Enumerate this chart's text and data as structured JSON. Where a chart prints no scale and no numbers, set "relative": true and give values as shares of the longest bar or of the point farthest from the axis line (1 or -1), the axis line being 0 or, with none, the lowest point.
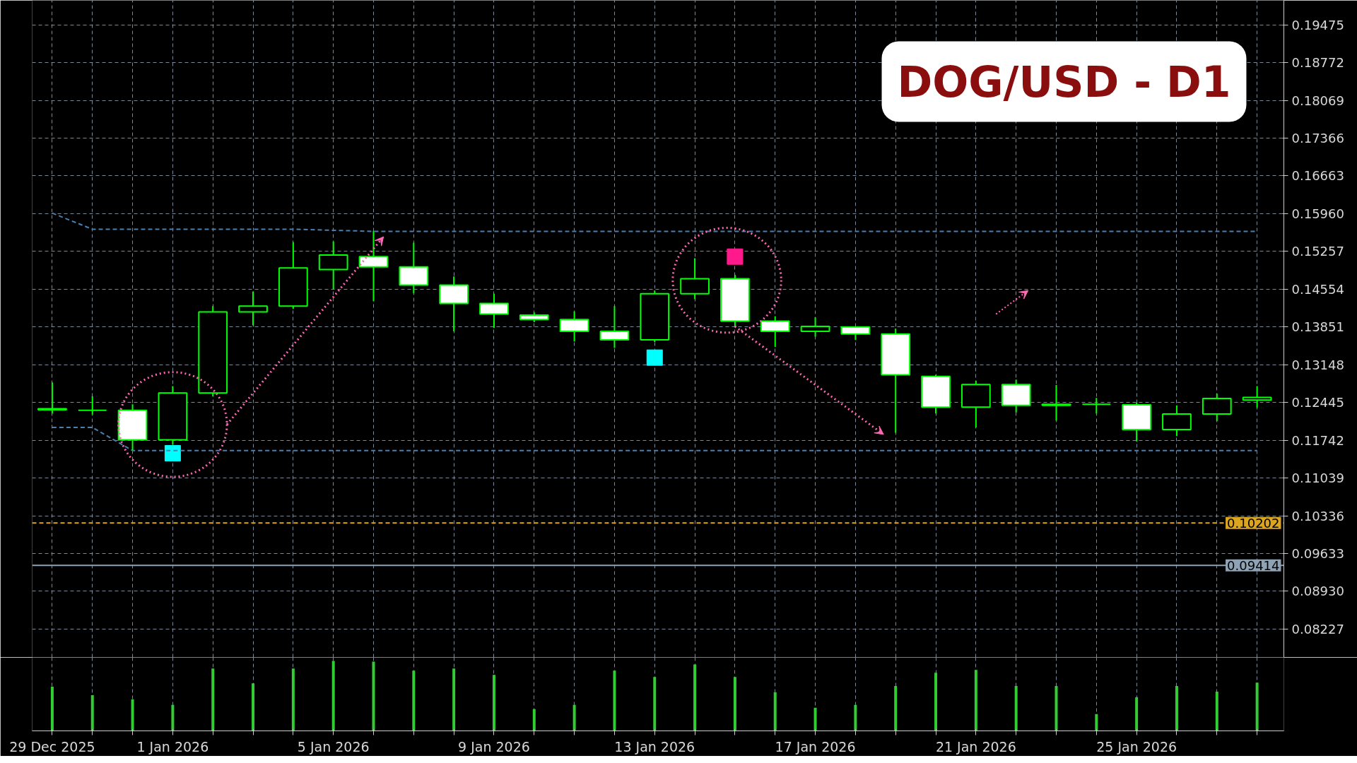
{
  "chart_data": [
    {
      "type": "candlestick",
      "title": "DOG/USD - D1",
      "x": [
        "2025-12-29",
        "2025-12-30",
        "2025-12-31",
        "2026-01-01",
        "2026-01-02",
        "2026-01-03",
        "2026-01-04",
        "2026-01-05",
        "2026-01-06",
        "2026-01-07",
        "2026-01-08",
        "2026-01-09",
        "2026-01-10",
        "2026-01-11",
        "2026-01-12",
        "2026-01-13",
        "2026-01-14",
        "2026-01-15",
        "2026-01-16",
        "2026-01-17",
        "2026-01-18",
        "2026-01-19",
        "2026-01-20",
        "2026-01-21",
        "2026-01-22",
        "2026-01-23",
        "2026-01-24",
        "2026-01-25",
        "2026-01-26",
        "2026-01-27",
        "2026-01-28"
      ],
      "ohlc": [
        [
          0.1233,
          0.1282,
          0.1224,
          0.1231
        ],
        [
          0.123,
          0.1256,
          0.1222,
          0.123
        ],
        [
          0.123,
          0.1241,
          0.1156,
          0.1175
        ],
        [
          0.1175,
          0.1275,
          0.1166,
          0.1262
        ],
        [
          0.1262,
          0.1424,
          0.1256,
          0.1413
        ],
        [
          0.1413,
          0.1451,
          0.1388,
          0.1424
        ],
        [
          0.1424,
          0.1543,
          0.1419,
          0.1495
        ],
        [
          0.1492,
          0.1544,
          0.1455,
          0.1519
        ],
        [
          0.1516,
          0.1564,
          0.1433,
          0.1497
        ],
        [
          0.1497,
          0.1542,
          0.1448,
          0.1463
        ],
        [
          0.1463,
          0.1479,
          0.1377,
          0.1429
        ],
        [
          0.1429,
          0.1447,
          0.1383,
          0.1409
        ],
        [
          0.1407,
          0.1412,
          0.1394,
          0.1399
        ],
        [
          0.1399,
          0.1414,
          0.1358,
          0.1377
        ],
        [
          0.1377,
          0.1424,
          0.1346,
          0.1361
        ],
        [
          0.1361,
          0.1453,
          0.1357,
          0.1447
        ],
        [
          0.1447,
          0.1513,
          0.1437,
          0.1475
        ],
        [
          0.1475,
          0.1482,
          0.1386,
          0.1396
        ],
        [
          0.1396,
          0.1405,
          0.1348,
          0.1377
        ],
        [
          0.1377,
          0.1403,
          0.1367,
          0.1386
        ],
        [
          0.1385,
          0.1385,
          0.1361,
          0.1372
        ],
        [
          0.1372,
          0.1382,
          0.1188,
          0.1296
        ],
        [
          0.1293,
          0.1296,
          0.1224,
          0.1236
        ],
        [
          0.1236,
          0.1285,
          0.1198,
          0.1278
        ],
        [
          0.1278,
          0.1287,
          0.1226,
          0.1239
        ],
        [
          0.1241,
          0.1277,
          0.1211,
          0.1239
        ],
        [
          0.1241,
          0.1253,
          0.1224,
          0.1241
        ],
        [
          0.124,
          0.1244,
          0.1172,
          0.1194
        ],
        [
          0.1194,
          0.1239,
          0.1182,
          0.1223
        ],
        [
          0.1223,
          0.1261,
          0.121,
          0.1252
        ],
        [
          0.1249,
          0.1275,
          0.1235,
          0.1254
        ]
      ],
      "color": "#00ff00",
      "colors": [
        "#ffffff",
        "#00ff00",
        "#ffffff",
        "#000000",
        "#000000",
        "#000000",
        "#000000",
        "#000000",
        "#ffffff",
        "#ffffff",
        "#ffffff",
        "#ffffff",
        "#ffffff",
        "#ffffff",
        "#ffffff",
        "#000000",
        "#000000",
        "#ffffff",
        "#ffffff",
        "#000000",
        "#ffffff",
        "#ffffff",
        "#ffffff",
        "#000000",
        "#ffffff",
        "#ffffff",
        "#00ff00",
        "#ffffff",
        "#000000",
        "#000000",
        "#000000"
      ],
      "series": [
        {
          "type": "line",
          "color": "#4a7fb0",
          "line_style": "dashed",
          "values": [
            0.1597,
            0.1567,
            0.1567,
            0.1567,
            0.1567,
            0.1567,
            0.1567,
            0.1565,
            0.1563,
            0.1563,
            0.1563,
            0.1563,
            0.1563,
            0.1563,
            0.1563,
            0.1563,
            0.1563,
            0.1563,
            0.1563,
            0.1563,
            0.1563,
            0.1563,
            0.1563,
            0.1563,
            0.1563,
            0.1563,
            0.1563,
            0.1563,
            0.1563,
            0.1563,
            0.1563
          ]
        },
        {
          "type": "line",
          "color": "#4a7fb0",
          "line_style": "dashed",
          "values": [
            0.1198,
            0.1198,
            0.1155,
            0.1155,
            0.1155,
            0.1155,
            0.1155,
            0.1155,
            0.1155,
            0.1155,
            0.1155,
            0.1155,
            0.1155,
            0.1155,
            0.1155,
            0.1155,
            0.1155,
            0.1155,
            0.1155,
            0.1155,
            0.1155,
            0.1155,
            0.1155,
            0.1155,
            0.1155,
            0.1155,
            0.1155,
            0.1155,
            0.1155,
            0.1155,
            0.1155
          ]
        },
        {
          "type": "scatter",
          "marker": "square",
          "color": "#00ffff",
          "x": [
            "2026-01-01",
            "2026-01-13"
          ],
          "values": [
            0.115,
            0.1328
          ]
        },
        {
          "type": "scatter",
          "marker": "square",
          "color": "#ff1a8c",
          "x": [
            "2026-01-15"
          ],
          "values": [
            0.1516
          ]
        }
      ],
      "xlim": [
        "2025-12-28T12:00",
        "2026-01-28T16:00"
      ],
      "xticks": [
        {
          "value": "2025-12-29",
          "label": null
        },
        {
          "value": "2025-12-30",
          "label": null
        },
        {
          "value": "2025-12-31",
          "label": null
        },
        {
          "value": "2026-01-01",
          "label": null
        },
        {
          "value": "2026-01-02",
          "label": null
        },
        {
          "value": "2026-01-03",
          "label": null
        },
        {
          "value": "2026-01-04",
          "label": null
        },
        {
          "value": "2026-01-05",
          "label": null
        },
        {
          "value": "2026-01-06",
          "label": null
        },
        {
          "value": "2026-01-07",
          "label": null
        },
        {
          "value": "2026-01-08",
          "label": null
        },
        {
          "value": "2026-01-09",
          "label": null
        },
        {
          "value": "2026-01-10",
          "label": null
        },
        {
          "value": "2026-01-11",
          "label": null
        },
        {
          "value": "2026-01-12",
          "label": null
        },
        {
          "value": "2026-01-13",
          "label": null
        },
        {
          "value": "2026-01-14",
          "label": null
        },
        {
          "value": "2026-01-15",
          "label": null
        },
        {
          "value": "2026-01-16",
          "label": null
        },
        {
          "value": "2026-01-17",
          "label": null
        },
        {
          "value": "2026-01-18",
          "label": null
        },
        {
          "value": "2026-01-19",
          "label": null
        },
        {
          "value": "2026-01-20",
          "label": null
        },
        {
          "value": "2026-01-21",
          "label": null
        },
        {
          "value": "2026-01-22",
          "label": null
        },
        {
          "value": "2026-01-23",
          "label": null
        },
        {
          "value": "2026-01-24",
          "label": null
        },
        {
          "value": "2026-01-25",
          "label": null
        },
        {
          "value": "2026-01-26",
          "label": null
        },
        {
          "value": "2026-01-27",
          "label": null
        },
        {
          "value": "2026-01-28",
          "label": null
        }
      ],
      "ylim": [
        0.077,
        0.1993
      ],
      "yticks": [
        0.19475,
        0.18772,
        0.18069,
        0.17366,
        0.16663,
        {
          "value": 0.1596,
          "label": "0.15960"
        },
        0.15257,
        0.14554,
        0.13851,
        0.13148,
        0.12445,
        0.11742,
        0.11039,
        0.10336,
        0.09633,
        {
          "value": 0.0893,
          "label": "0.08930"
        },
        0.08227
      ],
      "ref_lines": [
        {
          "axis": "y",
          "value": 0.10202,
          "label": "0.10202",
          "color": "#daa520",
          "line_style": "dashed"
        },
        {
          "axis": "y",
          "value": 0.09414,
          "label": "0.09414",
          "color": "#8fa3b5",
          "line_style": "solid"
        }
      ],
      "grid": true,
      "tick_labels": "y"
    },
    {
      "type": "bar",
      "relative": true,
      "color": "#32cd32",
      "x": [
        "2025-12-29",
        "2025-12-30",
        "2025-12-31",
        "2026-01-01",
        "2026-01-02",
        "2026-01-03",
        "2026-01-04",
        "2026-01-05",
        "2026-01-06",
        "2026-01-07",
        "2026-01-08",
        "2026-01-09",
        "2026-01-10",
        "2026-01-11",
        "2026-01-12",
        "2026-01-13",
        "2026-01-14",
        "2026-01-15",
        "2026-01-16",
        "2026-01-17",
        "2026-01-18",
        "2026-01-19",
        "2026-01-20",
        "2026-01-21",
        "2026-01-22",
        "2026-01-23",
        "2026-01-24",
        "2026-01-25",
        "2026-01-26",
        "2026-01-27",
        "2026-01-28"
      ],
      "values": [
        0.63,
        0.51,
        0.45,
        0.37,
        0.89,
        0.68,
        0.89,
        1,
        0.99,
        0.86,
        0.89,
        0.8,
        0.31,
        0.37,
        0.86,
        0.77,
        0.95,
        0.77,
        0.55,
        0.33,
        0.37,
        0.64,
        0.83,
        0.87,
        0.64,
        0.64,
        0.24,
        0.48,
        0.64,
        0.56,
        0.69
      ],
      "xlim": [
        "2025-12-28T12:00",
        "2026-01-28T16:00"
      ],
      "xticks": [
        {
          "value": "2025-12-29",
          "label": "29 Dec 2025"
        },
        {
          "value": "2025-12-30",
          "label": null
        },
        {
          "value": "2025-12-31",
          "label": null
        },
        {
          "value": "2026-01-01",
          "label": "1 Jan 2026"
        },
        {
          "value": "2026-01-02",
          "label": null
        },
        {
          "value": "2026-01-03",
          "label": null
        },
        {
          "value": "2026-01-04",
          "label": null
        },
        {
          "value": "2026-01-05",
          "label": "5 Jan 2026"
        },
        {
          "value": "2026-01-06",
          "label": null
        },
        {
          "value": "2026-01-07",
          "label": null
        },
        {
          "value": "2026-01-08",
          "label": null
        },
        {
          "value": "2026-01-09",
          "label": "9 Jan 2026"
        },
        {
          "value": "2026-01-10",
          "label": null
        },
        {
          "value": "2026-01-11",
          "label": null
        },
        {
          "value": "2026-01-12",
          "label": null
        },
        {
          "value": "2026-01-13",
          "label": "13 Jan 2026"
        },
        {
          "value": "2026-01-14",
          "label": null
        },
        {
          "value": "2026-01-15",
          "label": null
        },
        {
          "value": "2026-01-16",
          "label": null
        },
        {
          "value": "2026-01-17",
          "label": "17 Jan 2026"
        },
        {
          "value": "2026-01-18",
          "label": null
        },
        {
          "value": "2026-01-19",
          "label": null
        },
        {
          "value": "2026-01-20",
          "label": null
        },
        {
          "value": "2026-01-21",
          "label": "21 Jan 2026"
        },
        {
          "value": "2026-01-22",
          "label": null
        },
        {
          "value": "2026-01-23",
          "label": null
        },
        {
          "value": "2026-01-24",
          "label": null
        },
        {
          "value": "2026-01-25",
          "label": "25 Jan 2026"
        },
        {
          "value": "2026-01-26",
          "label": null
        },
        {
          "value": "2026-01-27",
          "label": null
        },
        {
          "value": "2026-01-28",
          "label": null
        }
      ],
      "grid": "x",
      "tick_labels": "x"
    }
  ]
}
